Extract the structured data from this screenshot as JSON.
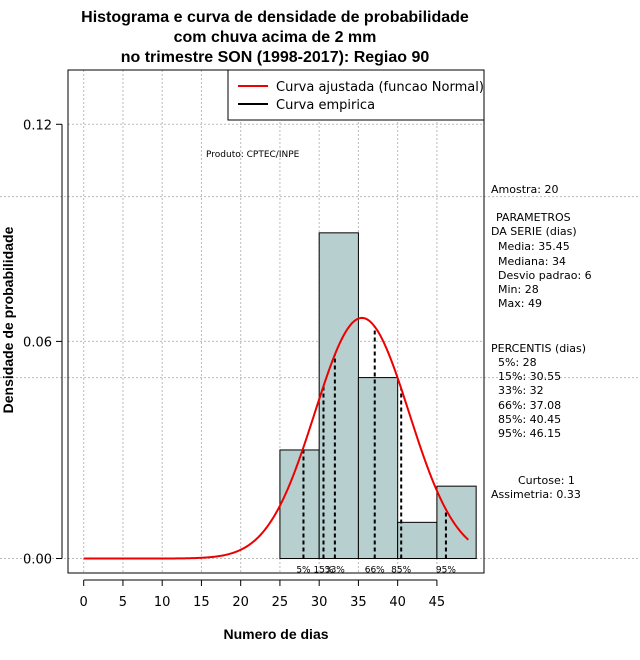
{
  "chart_data": {
    "type": "bar",
    "title_lines": [
      "Histograma e curva de densidade de probabilidade",
      "com chuva acima de 2 mm",
      "no trimestre SON (1998-2017): Regiao 90"
    ],
    "xlabel": "Numero de dias",
    "ylabel": "Densidade de probabilidade",
    "xlim": [
      -2,
      51
    ],
    "ylim": [
      -0.004,
      0.135
    ],
    "x_ticks": [
      0,
      5,
      10,
      15,
      20,
      25,
      30,
      35,
      40,
      45
    ],
    "x_tick_labels": [
      "0",
      "5",
      "10",
      "15",
      "20",
      "25",
      "30",
      "35",
      "40",
      "45"
    ],
    "y_ticks": [
      0.0,
      0.06,
      0.12
    ],
    "y_tick_labels": [
      "0.00",
      "0.06",
      "0.12"
    ],
    "histogram": {
      "bin_edges": [
        25,
        30,
        35,
        40,
        45,
        50
      ],
      "densities": [
        0.03,
        0.09,
        0.05,
        0.01,
        0.02
      ],
      "fill_color": "#b7cfcf"
    },
    "normal_curve": {
      "mean": 35.45,
      "sd": 6,
      "x_range": [
        0,
        49
      ],
      "color": "#ee0000"
    },
    "legend": [
      {
        "label": "Curva ajustada (funcao Normal)",
        "color": "#ee0000"
      },
      {
        "label": "Curva empirica",
        "color": "#000000"
      }
    ],
    "product_note": "Produto: CPTEC/INPE",
    "percentiles": [
      {
        "label": "5%",
        "value": 28
      },
      {
        "label": "15%",
        "value": 30.55
      },
      {
        "label": "33%",
        "value": 32
      },
      {
        "label": "66%",
        "value": 37.08
      },
      {
        "label": "85%",
        "value": 40.45
      },
      {
        "label": "95%",
        "value": 46.15
      }
    ],
    "side_panel": {
      "amostra": "Amostra: 20",
      "params_title_1": "PARAMETROS",
      "params_title_2": "DA SERIE (dias)",
      "media": "Media: 35.45",
      "mediana": "Mediana: 34",
      "desvio": "Desvio padrao: 6",
      "min": "Min: 28",
      "max": "Max: 49",
      "percentis_title": "PERCENTIS (dias)",
      "p5": "5%: 28",
      "p15": "15%: 30.55",
      "p33": "33%: 32",
      "p66": "66%: 37.08",
      "p85": "85%: 40.45",
      "p95": "95%: 46.15",
      "curtose": "Curtose: 1",
      "assimetria": "Assimetria: 0.33"
    },
    "grid": true
  }
}
